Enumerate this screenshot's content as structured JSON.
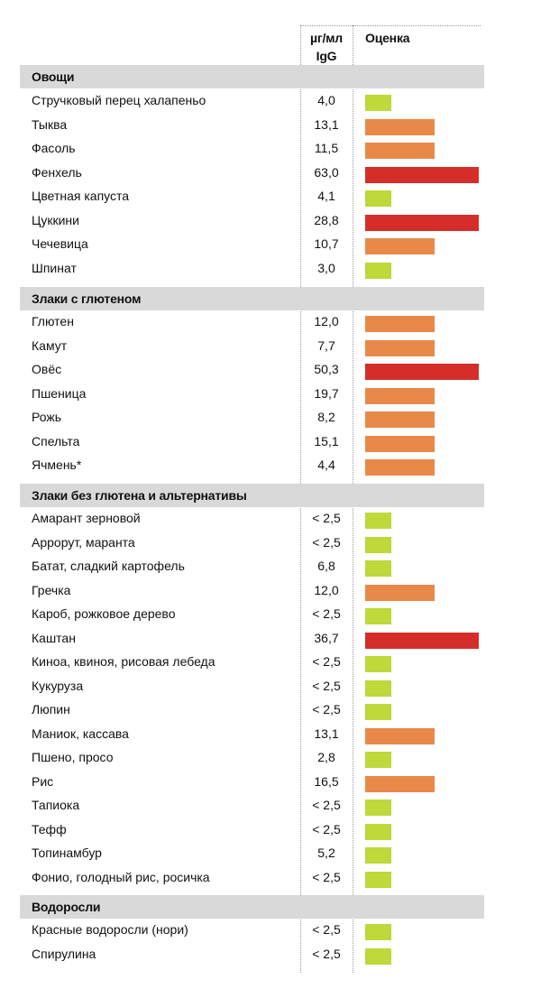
{
  "header": {
    "value_col": "µг/мл IgG",
    "score_col": "Оценка"
  },
  "colors": {
    "low": "#bfd83a",
    "medium": "#e8894a",
    "high": "#d52e2a"
  },
  "sections": [
    {
      "title": "Овощи",
      "items": [
        {
          "name": "Стручковый перец халапеньо",
          "value": "4,0",
          "level": "low"
        },
        {
          "name": "Тыква",
          "value": "13,1",
          "level": "medium"
        },
        {
          "name": "Фасоль",
          "value": "11,5",
          "level": "medium"
        },
        {
          "name": "Фенхель",
          "value": "63,0",
          "level": "high"
        },
        {
          "name": "Цветная капуста",
          "value": "4,1",
          "level": "low"
        },
        {
          "name": "Цуккини",
          "value": "28,8",
          "level": "high"
        },
        {
          "name": "Чечевица",
          "value": "10,7",
          "level": "medium"
        },
        {
          "name": "Шпинат",
          "value": "3,0",
          "level": "low"
        }
      ]
    },
    {
      "title": "Злаки с глютеном",
      "items": [
        {
          "name": "Глютен",
          "value": "12,0",
          "level": "medium"
        },
        {
          "name": "Камут",
          "value": "7,7",
          "level": "medium"
        },
        {
          "name": "Овёс",
          "value": "50,3",
          "level": "high"
        },
        {
          "name": "Пшеница",
          "value": "19,7",
          "level": "medium"
        },
        {
          "name": "Рожь",
          "value": "8,2",
          "level": "medium"
        },
        {
          "name": "Спельта",
          "value": "15,1",
          "level": "medium"
        },
        {
          "name": "Ячмень*",
          "value": "4,4",
          "level": "medium"
        }
      ]
    },
    {
      "title": "Злаки без глютена и альтернативы",
      "items": [
        {
          "name": "Амарант зерновой",
          "value": "< 2,5",
          "level": "low"
        },
        {
          "name": "Аррорут, маранта",
          "value": "< 2,5",
          "level": "low"
        },
        {
          "name": "Батат, сладкий картофель",
          "value": "6,8",
          "level": "low"
        },
        {
          "name": "Гречка",
          "value": "12,0",
          "level": "medium"
        },
        {
          "name": "Кароб, рожковое дерево",
          "value": "< 2,5",
          "level": "low"
        },
        {
          "name": "Каштан",
          "value": "36,7",
          "level": "high"
        },
        {
          "name": "Киноа, квиноя, рисовая лебеда",
          "value": "< 2,5",
          "level": "low"
        },
        {
          "name": "Кукуруза",
          "value": "< 2,5",
          "level": "low"
        },
        {
          "name": "Люпин",
          "value": "< 2,5",
          "level": "low"
        },
        {
          "name": "Маниок, кассава",
          "value": "13,1",
          "level": "medium"
        },
        {
          "name": "Пшено, просо",
          "value": "2,8",
          "level": "low"
        },
        {
          "name": "Рис",
          "value": "16,5",
          "level": "medium"
        },
        {
          "name": "Тапиока",
          "value": "< 2,5",
          "level": "low"
        },
        {
          "name": "Тефф",
          "value": "< 2,5",
          "level": "low"
        },
        {
          "name": "Топинамбур",
          "value": "5,2",
          "level": "low"
        },
        {
          "name": "Фонио, голодный рис, росичка",
          "value": "< 2,5",
          "level": "low"
        }
      ]
    },
    {
      "title": "Водоросли",
      "items": [
        {
          "name": "Красные водоросли (нори)",
          "value": "< 2,5",
          "level": "low"
        },
        {
          "name": "Спирулина",
          "value": "< 2,5",
          "level": "low"
        }
      ]
    }
  ]
}
